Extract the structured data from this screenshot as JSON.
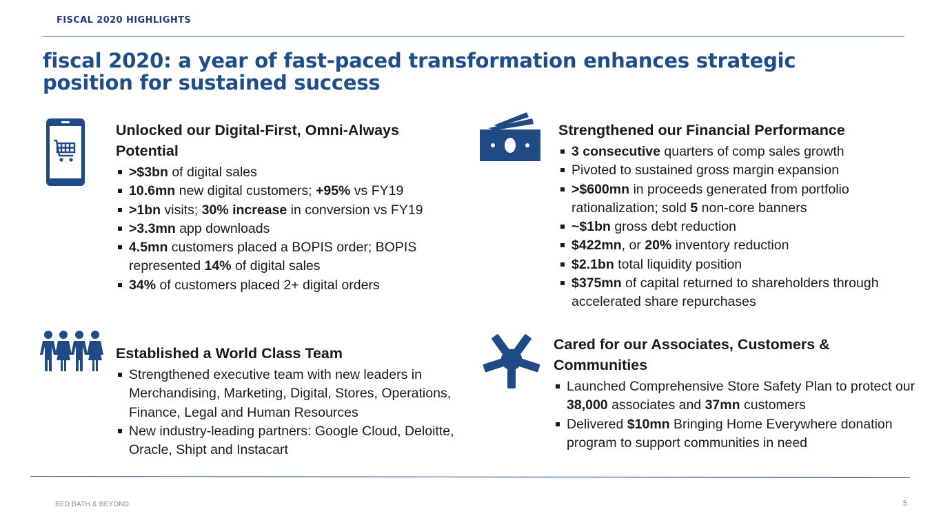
{
  "header": {
    "section_label": "FISCAL 2020 HIGHLIGHTS",
    "headline_line1": "fiscal 2020: a year of fast-paced transformation enhances strategic",
    "headline_line2": "position for sustained success"
  },
  "blocks": {
    "digital": {
      "icon": "mobile-shopping-cart-icon",
      "title": "Unlocked our Digital-First, Omni-Always Potential",
      "bullets": [
        [
          {
            "b": ">$3bn"
          },
          {
            "t": " of digital sales"
          }
        ],
        [
          {
            "b": "10.6mn"
          },
          {
            "t": " new digital customers; "
          },
          {
            "b": "+95%"
          },
          {
            "t": " vs FY19"
          }
        ],
        [
          {
            "b": ">1bn"
          },
          {
            "t": " visits; "
          },
          {
            "b": "30% increase"
          },
          {
            "t": " in conversion vs FY19"
          }
        ],
        [
          {
            "b": ">3.3mn"
          },
          {
            "t": " app downloads"
          }
        ],
        [
          {
            "b": "4.5mn"
          },
          {
            "t": " customers placed a BOPIS order; BOPIS represented "
          },
          {
            "b": "14%"
          },
          {
            "t": " of digital sales"
          }
        ],
        [
          {
            "b": "34%"
          },
          {
            "t": " of customers placed 2+ digital orders"
          }
        ]
      ]
    },
    "financial": {
      "icon": "money-bills-icon",
      "title": "Strengthened our Financial Performance",
      "bullets": [
        [
          {
            "b": "3 consecutive"
          },
          {
            "t": " quarters of comp sales growth"
          }
        ],
        [
          {
            "t": "Pivoted to sustained gross margin expansion"
          }
        ],
        [
          {
            "b": ">$600mn"
          },
          {
            "t": " in proceeds generated from portfolio rationalization; sold "
          },
          {
            "b": "5"
          },
          {
            "t": " non-core banners"
          }
        ],
        [
          {
            "b": "~$1bn"
          },
          {
            "t": " gross debt reduction"
          }
        ],
        [
          {
            "b": "$422mn"
          },
          {
            "t": ", or "
          },
          {
            "b": "20%"
          },
          {
            "t": " inventory reduction"
          }
        ],
        [
          {
            "b": "$2.1bn"
          },
          {
            "t": " total liquidity position"
          }
        ],
        [
          {
            "b": "$375mn"
          },
          {
            "t": " of capital returned to shareholders through accelerated share repurchases"
          }
        ]
      ]
    },
    "team": {
      "icon": "team-people-icon",
      "title": "Established a World Class Team",
      "bullets": [
        [
          {
            "t": "Strengthened executive team with new leaders in Merchandising, Marketing, Digital, Stores, Operations, Finance, Legal and Human Resources"
          }
        ],
        [
          {
            "t": "New industry-leading partners: Google Cloud, Deloitte, Oracle, Shipt and Instacart"
          }
        ]
      ]
    },
    "care": {
      "icon": "joined-hands-icon",
      "title": "Cared for our Associates, Customers & Communities",
      "bullets": [
        [
          {
            "t": "Launched Comprehensive Store Safety Plan to protect our "
          },
          {
            "b": "38,000"
          },
          {
            "t": " associates and "
          },
          {
            "b": "37mn"
          },
          {
            "t": " customers"
          }
        ],
        [
          {
            "t": "Delivered "
          },
          {
            "b": "$10mn"
          },
          {
            "t": " Bringing Home Everywhere donation program to support communities in need"
          }
        ]
      ]
    }
  },
  "footer": {
    "company": "BED BATH & BEYOND",
    "page_number": "5"
  },
  "colors": {
    "brand_blue": "#1d4e89",
    "icon_blue": "#1f4a86",
    "rule_blue": "#3a5f95"
  }
}
